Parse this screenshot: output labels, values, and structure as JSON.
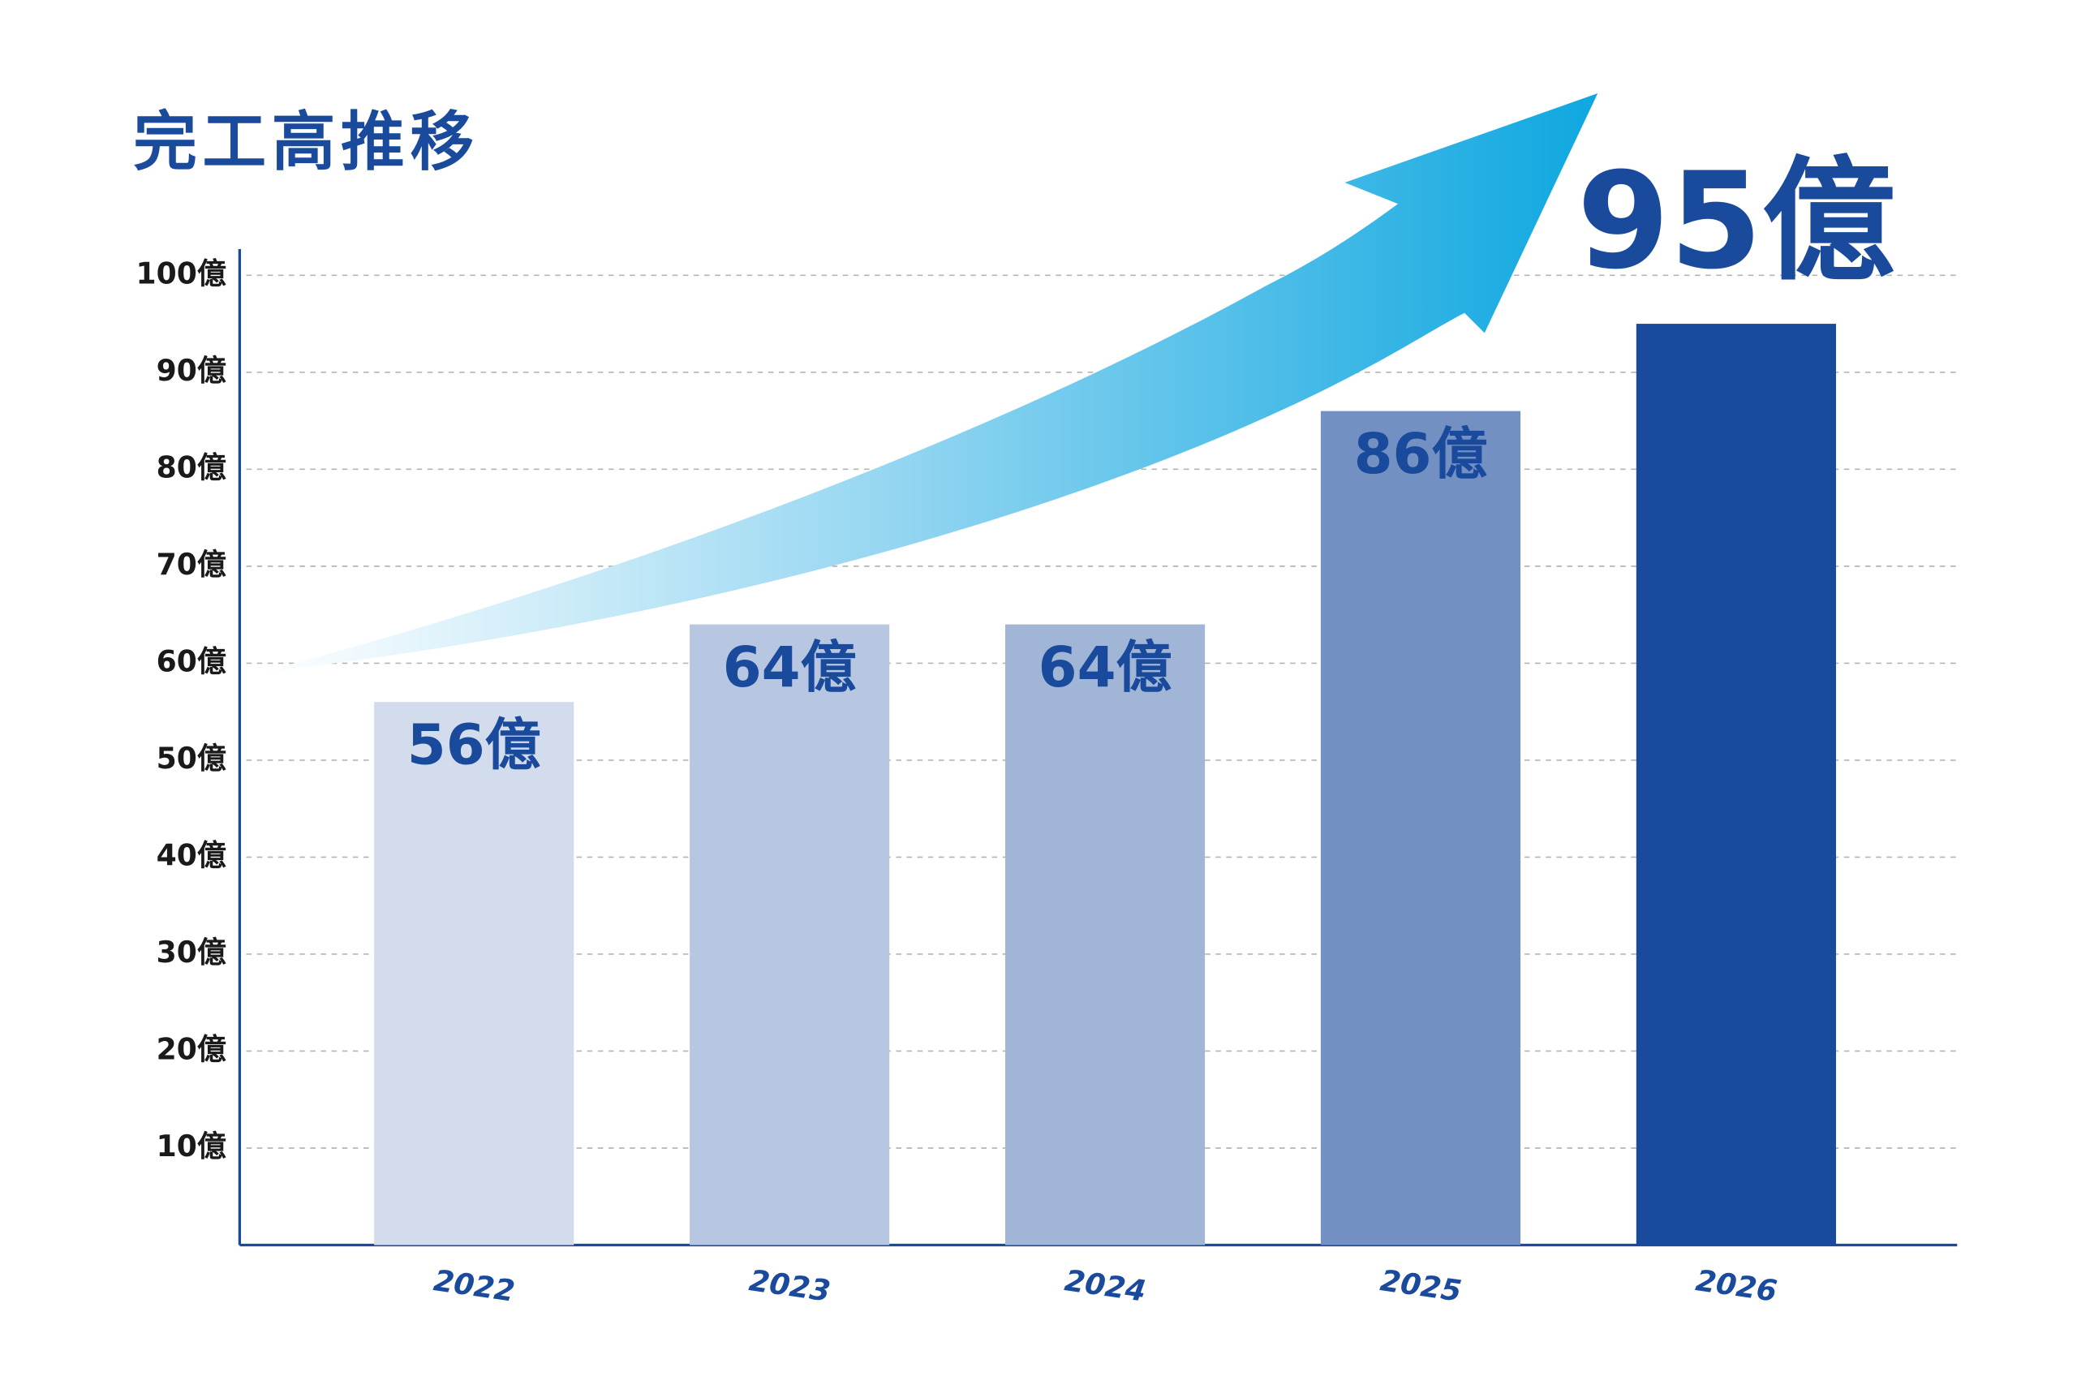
{
  "chart_data": {
    "type": "bar",
    "title": "完工高推移",
    "categories": [
      "2022",
      "2023",
      "2024",
      "2025",
      "2026"
    ],
    "values": [
      56,
      64,
      64,
      86,
      95
    ],
    "value_labels": [
      "56億",
      "64億",
      "64億",
      "86億",
      "95億"
    ],
    "colors": [
      "#d3dced",
      "#b8c7e1",
      "#a1b5d6",
      "#7390c3",
      "#1a4a9c"
    ],
    "ylim": [
      0,
      102.7
    ],
    "yticks": [
      {
        "value": 10,
        "label": "10億"
      },
      {
        "value": 20,
        "label": "20億"
      },
      {
        "value": 30,
        "label": "30億"
      },
      {
        "value": 40,
        "label": "40億"
      },
      {
        "value": 50,
        "label": "50億"
      },
      {
        "value": 60,
        "label": "60億"
      },
      {
        "value": 70,
        "label": "70億"
      },
      {
        "value": 80,
        "label": "80億"
      },
      {
        "value": 90,
        "label": "90億"
      },
      {
        "value": 100,
        "label": "100億"
      }
    ],
    "grid": true
  }
}
